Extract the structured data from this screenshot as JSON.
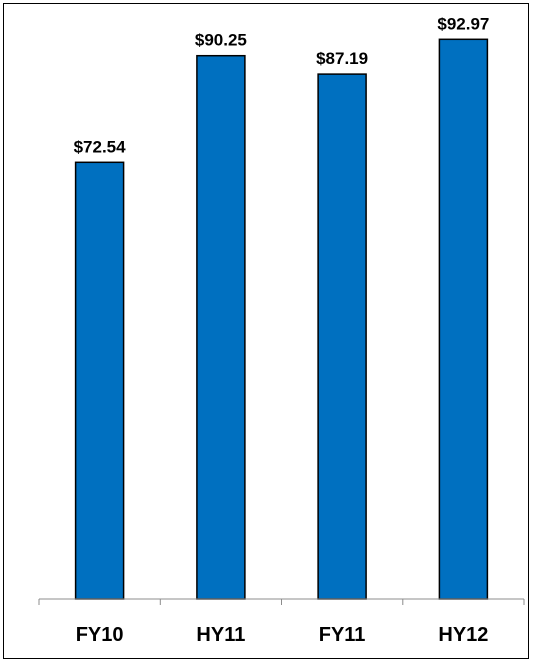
{
  "chart_data": {
    "type": "bar",
    "categories": [
      "FY10",
      "HY11",
      "FY11",
      "HY12"
    ],
    "values": [
      72.54,
      90.25,
      87.19,
      92.97
    ],
    "data_labels": [
      "$72.54",
      "$90.25",
      "$87.19",
      "$92.97"
    ],
    "title": "",
    "xlabel": "",
    "ylabel": "",
    "ylim": [
      0,
      100
    ],
    "grid": false,
    "legend": "none",
    "bar_color": "#0070c0",
    "bar_edge_color": "#000000"
  }
}
